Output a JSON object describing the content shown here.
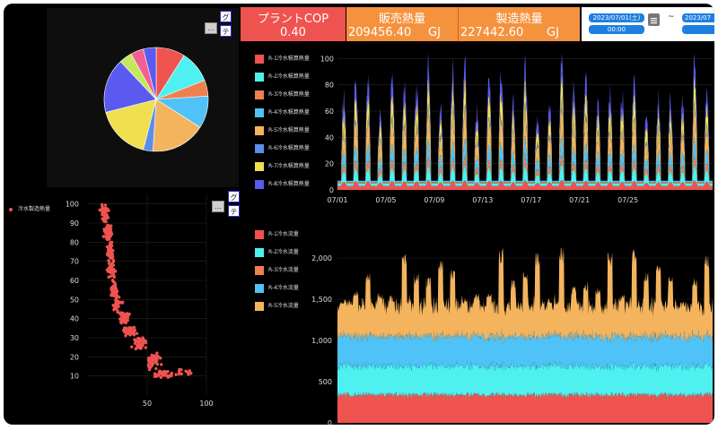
{
  "kpis": {
    "cop": {
      "title": "プラントCOP",
      "value": "0.40",
      "unit": ""
    },
    "sales_heat": {
      "title": "販売熱量",
      "value": "209456.40",
      "unit": "GJ"
    },
    "production_heat": {
      "title": "製造熱量",
      "value": "227442.60",
      "unit": "GJ"
    }
  },
  "date_range": {
    "start_date": "2023/07/01(土)",
    "start_time": "00:00",
    "separator": "~",
    "end_date": "2023/07"
  },
  "panel_buttons": {
    "graph": "グ",
    "table": "テ",
    "menu": "…"
  },
  "colors": {
    "background": "#000000",
    "cop_bg": "#ef5350",
    "heat_bg": "#f5923e",
    "date_accent": "#1e7fe0"
  },
  "chart_data": [
    {
      "type": "pie",
      "title": "",
      "values": [
        9,
        10,
        5,
        10,
        17,
        3,
        17,
        17,
        4,
        4,
        4
      ],
      "colors": [
        "#ef5350",
        "#4ef0f0",
        "#f08050",
        "#4fc3f7",
        "#f4b45e",
        "#5c8dea",
        "#f0e050",
        "#5a5af0",
        "#c4e85a",
        "#f06090",
        "#5a5af0"
      ]
    },
    {
      "type": "scatter",
      "title": "",
      "series": [
        {
          "name": "冷水製造熱量",
          "color": "#ef5350"
        }
      ],
      "xlim": [
        0,
        100
      ],
      "ylim": [
        0,
        105
      ],
      "x_ticks": [
        50,
        100
      ],
      "y_ticks": [
        10,
        20,
        30,
        40,
        50,
        60,
        70,
        80,
        90,
        100
      ],
      "clusters": [
        {
          "x": 14,
          "y": 95,
          "sx": 3,
          "sy": 4,
          "n": 60
        },
        {
          "x": 17,
          "y": 85,
          "sx": 3,
          "sy": 4,
          "n": 50
        },
        {
          "x": 19,
          "y": 75,
          "sx": 3,
          "sy": 4,
          "n": 50
        },
        {
          "x": 20,
          "y": 65,
          "sx": 3,
          "sy": 4,
          "n": 45
        },
        {
          "x": 22,
          "y": 55,
          "sx": 3,
          "sy": 4,
          "n": 45
        },
        {
          "x": 25,
          "y": 47,
          "sx": 4,
          "sy": 4,
          "n": 35
        },
        {
          "x": 30,
          "y": 40,
          "sx": 4,
          "sy": 3,
          "n": 40
        },
        {
          "x": 35,
          "y": 33,
          "sx": 5,
          "sy": 3,
          "n": 40
        },
        {
          "x": 44,
          "y": 27,
          "sx": 6,
          "sy": 3,
          "n": 45
        },
        {
          "x": 55,
          "y": 18,
          "sx": 6,
          "sy": 4,
          "n": 45
        },
        {
          "x": 64,
          "y": 11,
          "sx": 6,
          "sy": 2,
          "n": 40
        },
        {
          "x": 80,
          "y": 12,
          "sx": 7,
          "sy": 2,
          "n": 12
        }
      ]
    },
    {
      "type": "area",
      "title": "",
      "stacked": true,
      "days": 31,
      "x_ticks": [
        "07/01",
        "07/05",
        "07/09",
        "07/13",
        "07/17",
        "07/21",
        "07/25"
      ],
      "ylim": [
        0,
        105
      ],
      "y_ticks": [
        0,
        20,
        40,
        60,
        80,
        100
      ],
      "series": [
        {
          "name": "R-1冷水積算熱量",
          "color": "#ef5350",
          "peak": 4,
          "base": 3
        },
        {
          "name": "R-2冷水積算熱量",
          "color": "#4ef0f0",
          "peak": 9,
          "base": 2
        },
        {
          "name": "R-3冷水積算熱量",
          "color": "#f08050",
          "peak": 5,
          "base": 1
        },
        {
          "name": "R-4冷水積算熱量",
          "color": "#4fc3f7",
          "peak": 12,
          "base": 1
        },
        {
          "name": "R-5冷水積算熱量",
          "color": "#f4b45e",
          "peak": 20,
          "base": 0
        },
        {
          "name": "R-6冷水積算熱量",
          "color": "#5c8dea",
          "peak": 3,
          "base": 0
        },
        {
          "name": "R-7冷水積算熱量",
          "color": "#f0e050",
          "peak": 18,
          "base": 0
        },
        {
          "name": "R-8冷水積算熱量",
          "color": "#5a5af0",
          "peak": 15,
          "base": 0
        }
      ]
    },
    {
      "type": "area",
      "title": "",
      "stacked": true,
      "days": 31,
      "ylim": [
        0,
        2500
      ],
      "y_ticks": [
        0,
        500,
        1000,
        1500,
        2000
      ],
      "y_tick_labels": [
        "0",
        "500",
        "1,000",
        "1,500",
        "2,000"
      ],
      "series": [
        {
          "name": "R-1冷水流量",
          "color": "#ef5350",
          "level": 340
        },
        {
          "name": "R-2冷水流量",
          "color": "#4ef0f0",
          "level": 350
        },
        {
          "name": "R-3冷水流量",
          "color": "#f08050",
          "level": 0
        },
        {
          "name": "R-4冷水流量",
          "color": "#4fc3f7",
          "level": 360
        },
        {
          "name": "R-5冷水流量",
          "color": "#f4b45e",
          "level": 1000
        }
      ]
    }
  ]
}
